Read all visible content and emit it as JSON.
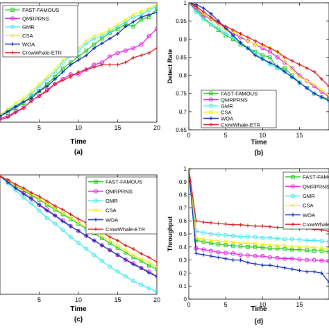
{
  "figure": {
    "background": "#ffffff"
  },
  "legend_colors": {
    "FAST-FAMOUS": "#22cc22",
    "QMRPRNS": "#e020e0",
    "GMR": "#40e8f0",
    "CSA": "#f0f020",
    "WOA": "#1030b0",
    "CrowWhale-ETR": "#d42020"
  },
  "chart_data": [
    {
      "id": "a",
      "type": "line",
      "caption": "(a)",
      "xlabel": "Time",
      "ylabel": "",
      "xlim": [
        0,
        20
      ],
      "ylim": [
        0,
        1
      ],
      "xticks": [
        "5",
        "10",
        "15",
        "20"
      ],
      "xtick_values": [
        5,
        10,
        15,
        20
      ],
      "yticks": [],
      "ytick_values": [],
      "legend": "top-left",
      "x": [
        0,
        1,
        2,
        3,
        4,
        5,
        6,
        7,
        8,
        9,
        10,
        11,
        12,
        13,
        14,
        15,
        16,
        17,
        18,
        19,
        20
      ],
      "series": [
        {
          "name": "FAST-FAMOUS",
          "values": [
            0.05,
            0.08,
            0.12,
            0.16,
            0.22,
            0.26,
            0.32,
            0.38,
            0.45,
            0.5,
            0.55,
            0.6,
            0.65,
            0.7,
            0.75,
            0.78,
            0.82,
            0.8,
            0.86,
            0.88,
            0.95
          ]
        },
        {
          "name": "QMRPRNS",
          "values": [
            0.03,
            0.05,
            0.09,
            0.12,
            0.18,
            0.22,
            0.27,
            0.32,
            0.36,
            0.4,
            0.4,
            0.44,
            0.48,
            0.5,
            0.55,
            0.58,
            0.6,
            0.62,
            0.65,
            0.72,
            0.78
          ]
        },
        {
          "name": "GMR",
          "values": [
            0.05,
            0.1,
            0.14,
            0.18,
            0.24,
            0.3,
            0.36,
            0.42,
            0.5,
            0.56,
            0.6,
            0.66,
            0.7,
            0.72,
            0.76,
            0.8,
            0.84,
            0.88,
            0.9,
            0.94,
            0.97
          ]
        },
        {
          "name": "CSA",
          "values": [
            0.06,
            0.11,
            0.16,
            0.2,
            0.26,
            0.32,
            0.38,
            0.44,
            0.52,
            0.58,
            0.62,
            0.68,
            0.72,
            0.74,
            0.78,
            0.82,
            0.86,
            0.9,
            0.93,
            0.95,
            0.99
          ]
        },
        {
          "name": "WOA",
          "values": [
            0.05,
            0.09,
            0.13,
            0.17,
            0.2,
            0.26,
            0.3,
            0.36,
            0.42,
            0.48,
            0.52,
            0.56,
            0.62,
            0.66,
            0.7,
            0.74,
            0.8,
            0.84,
            0.88,
            0.9,
            0.92
          ]
        },
        {
          "name": "CrowWhale-ETR",
          "values": [
            0.02,
            0.04,
            0.08,
            0.12,
            0.18,
            0.22,
            0.26,
            0.32,
            0.35,
            0.38,
            0.42,
            0.44,
            0.46,
            0.48,
            0.48,
            0.48,
            0.5,
            0.54,
            0.56,
            0.58,
            0.62
          ]
        }
      ]
    },
    {
      "id": "b",
      "type": "line",
      "caption": "(b)",
      "xlabel": "Time",
      "ylabel": "Detect Rate",
      "xlim": [
        0,
        19
      ],
      "ylim": [
        0.65,
        1
      ],
      "xticks": [
        "0",
        "5",
        "10",
        "15"
      ],
      "xtick_values": [
        0,
        5,
        10,
        15
      ],
      "yticks": [
        "0.65",
        "0.7",
        "0.75",
        "0.8",
        "0.85",
        "0.9",
        "0.95",
        "1"
      ],
      "ytick_values": [
        0.65,
        0.7,
        0.75,
        0.8,
        0.85,
        0.9,
        0.95,
        1
      ],
      "legend": "bottom-left",
      "x": [
        0,
        1,
        2,
        3,
        4,
        5,
        6,
        7,
        8,
        9,
        10,
        11,
        12,
        13,
        14,
        15,
        16,
        17,
        18,
        19
      ],
      "series": [
        {
          "name": "FAST-FAMOUS",
          "values": [
            1.0,
            0.98,
            0.96,
            0.94,
            0.925,
            0.91,
            0.9,
            0.885,
            0.875,
            0.865,
            0.855,
            0.85,
            0.82,
            0.82,
            0.8,
            0.78,
            0.765,
            0.75,
            0.74,
            0.735
          ]
        },
        {
          "name": "QMRPRNS",
          "values": [
            1.0,
            0.985,
            0.965,
            0.955,
            0.945,
            0.93,
            0.915,
            0.905,
            0.895,
            0.885,
            0.875,
            0.865,
            0.85,
            0.835,
            0.82,
            0.8,
            0.785,
            0.77,
            0.755,
            0.74
          ]
        },
        {
          "name": "GMR",
          "values": [
            1.0,
            0.975,
            0.955,
            0.94,
            0.93,
            0.915,
            0.905,
            0.89,
            0.875,
            0.86,
            0.845,
            0.83,
            0.82,
            0.81,
            0.795,
            0.78,
            0.765,
            0.75,
            0.74,
            0.73
          ]
        },
        {
          "name": "CSA",
          "values": [
            1.0,
            0.99,
            0.97,
            0.955,
            0.94,
            0.925,
            0.92,
            0.91,
            0.895,
            0.885,
            0.88,
            0.875,
            0.865,
            0.84,
            0.815,
            0.795,
            0.785,
            0.775,
            0.76,
            0.745
          ]
        },
        {
          "name": "WOA",
          "values": [
            1.0,
            0.995,
            0.985,
            0.97,
            0.95,
            0.93,
            0.91,
            0.89,
            0.875,
            0.855,
            0.845,
            0.835,
            0.825,
            0.81,
            0.795,
            0.78,
            0.765,
            0.75,
            0.74,
            0.73
          ]
        },
        {
          "name": "CrowWhale-ETR",
          "values": [
            1.0,
            0.99,
            0.975,
            0.96,
            0.945,
            0.935,
            0.925,
            0.915,
            0.905,
            0.895,
            0.885,
            0.875,
            0.865,
            0.85,
            0.84,
            0.83,
            0.82,
            0.81,
            0.79,
            0.77
          ]
        }
      ]
    },
    {
      "id": "c",
      "type": "line",
      "caption": "(c)",
      "xlabel": "Time",
      "ylabel": "",
      "xlim": [
        0,
        20
      ],
      "ylim": [
        0,
        1
      ],
      "xticks": [
        "5",
        "10",
        "15",
        "20"
      ],
      "xtick_values": [
        5,
        10,
        15,
        20
      ],
      "yticks": [],
      "ytick_values": [],
      "legend": "top-right",
      "x": [
        0,
        1,
        2,
        3,
        4,
        5,
        6,
        7,
        8,
        9,
        10,
        11,
        12,
        13,
        14,
        15,
        16,
        17,
        18,
        19,
        20
      ],
      "series": [
        {
          "name": "FAST-FAMOUS",
          "values": [
            0.99,
            0.95,
            0.91,
            0.87,
            0.83,
            0.79,
            0.75,
            0.71,
            0.67,
            0.63,
            0.59,
            0.55,
            0.51,
            0.47,
            0.43,
            0.39,
            0.35,
            0.31,
            0.28,
            0.24,
            0.21
          ]
        },
        {
          "name": "QMRPRNS",
          "values": [
            0.99,
            0.94,
            0.89,
            0.85,
            0.8,
            0.75,
            0.71,
            0.66,
            0.62,
            0.57,
            0.53,
            0.49,
            0.45,
            0.41,
            0.37,
            0.33,
            0.29,
            0.26,
            0.22,
            0.19,
            0.15
          ]
        },
        {
          "name": "GMR",
          "values": [
            0.99,
            0.93,
            0.87,
            0.81,
            0.76,
            0.7,
            0.64,
            0.59,
            0.54,
            0.48,
            0.43,
            0.38,
            0.33,
            0.28,
            0.23,
            0.19,
            0.15,
            0.11,
            0.08,
            0.05,
            0.02
          ]
        },
        {
          "name": "CSA",
          "values": [
            0.99,
            0.95,
            0.91,
            0.88,
            0.84,
            0.8,
            0.76,
            0.72,
            0.68,
            0.64,
            0.6,
            0.56,
            0.53,
            0.49,
            0.45,
            0.41,
            0.37,
            0.33,
            0.3,
            0.27,
            0.23
          ]
        },
        {
          "name": "WOA",
          "values": [
            0.99,
            0.94,
            0.89,
            0.84,
            0.8,
            0.75,
            0.7,
            0.66,
            0.61,
            0.57,
            0.53,
            0.49,
            0.45,
            0.41,
            0.37,
            0.33,
            0.29,
            0.25,
            0.22,
            0.18,
            0.15
          ]
        },
        {
          "name": "CrowWhale-ETR",
          "values": [
            0.99,
            0.96,
            0.92,
            0.89,
            0.85,
            0.82,
            0.78,
            0.74,
            0.71,
            0.67,
            0.63,
            0.6,
            0.56,
            0.52,
            0.48,
            0.45,
            0.41,
            0.38,
            0.34,
            0.31,
            0.27
          ]
        }
      ]
    },
    {
      "id": "d",
      "type": "line",
      "caption": "(d)",
      "xlabel": "Time",
      "ylabel": "Throughput",
      "xlim": [
        0,
        19
      ],
      "ylim": [
        0,
        1
      ],
      "xticks": [
        "0",
        "5",
        "10",
        "15"
      ],
      "xtick_values": [
        0,
        5,
        10,
        15
      ],
      "yticks": [
        "0",
        "0.1",
        "0.2",
        "0.3",
        "0.4",
        "0.5",
        "0.6",
        "0.7",
        "0.8",
        "0.9",
        "1"
      ],
      "ytick_values": [
        0,
        0.1,
        0.2,
        0.3,
        0.4,
        0.5,
        0.6,
        0.7,
        0.8,
        0.9,
        1
      ],
      "legend": "top-right",
      "x": [
        0,
        1,
        2,
        3,
        4,
        5,
        6,
        7,
        8,
        9,
        10,
        11,
        12,
        13,
        14,
        15,
        16,
        17,
        18,
        19
      ],
      "series": [
        {
          "name": "FAST-FAMOUS",
          "values": [
            1.0,
            0.45,
            0.44,
            0.43,
            0.42,
            0.415,
            0.41,
            0.405,
            0.4,
            0.4,
            0.395,
            0.39,
            0.39,
            0.385,
            0.38,
            0.38,
            0.375,
            0.37,
            0.37,
            0.365
          ]
        },
        {
          "name": "QMRPRNS",
          "values": [
            1.0,
            0.39,
            0.38,
            0.37,
            0.36,
            0.355,
            0.35,
            0.34,
            0.335,
            0.33,
            0.33,
            0.32,
            0.315,
            0.31,
            0.31,
            0.305,
            0.3,
            0.3,
            0.295,
            0.29
          ]
        },
        {
          "name": "GMR",
          "values": [
            1.0,
            0.52,
            0.51,
            0.5,
            0.495,
            0.49,
            0.485,
            0.48,
            0.48,
            0.475,
            0.47,
            0.47,
            0.465,
            0.46,
            0.46,
            0.455,
            0.45,
            0.45,
            0.445,
            0.44
          ]
        },
        {
          "name": "CSA",
          "values": [
            1.0,
            0.47,
            0.46,
            0.45,
            0.445,
            0.44,
            0.435,
            0.43,
            0.43,
            0.425,
            0.42,
            0.415,
            0.41,
            0.41,
            0.405,
            0.4,
            0.4,
            0.395,
            0.39,
            0.385
          ]
        },
        {
          "name": "WOA",
          "values": [
            1.0,
            0.35,
            0.34,
            0.33,
            0.32,
            0.31,
            0.3,
            0.3,
            0.28,
            0.27,
            0.26,
            0.26,
            0.25,
            0.24,
            0.23,
            0.22,
            0.21,
            0.21,
            0.2,
            0.13
          ]
        },
        {
          "name": "CrowWhale-ETR",
          "values": [
            1.0,
            0.6,
            0.59,
            0.585,
            0.58,
            0.575,
            0.57,
            0.57,
            0.565,
            0.56,
            0.56,
            0.555,
            0.55,
            0.55,
            0.545,
            0.54,
            0.54,
            0.535,
            0.53,
            0.52
          ]
        }
      ]
    }
  ]
}
